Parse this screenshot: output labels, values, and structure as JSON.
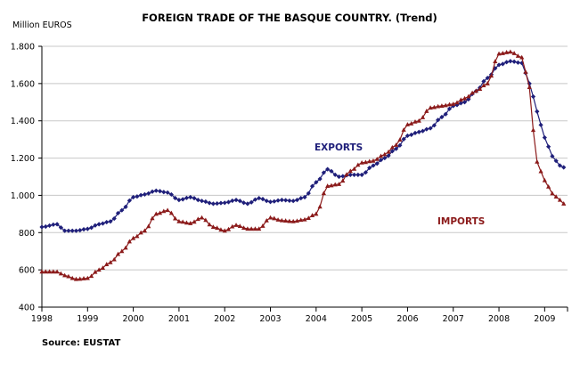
{
  "chart_data": {
    "type": "line",
    "title": "FOREIGN TRADE OF THE BASQUE COUNTRY. (Trend)",
    "ylabel": "Million EUROS",
    "xlabel": "",
    "source": "Source: EUSTAT",
    "xlim": [
      1998,
      2009.5
    ],
    "ylim": [
      400,
      1800
    ],
    "x_ticks": [
      "1998",
      "1999",
      "2000",
      "2001",
      "2002",
      "2003",
      "2004",
      "2005",
      "2006",
      "2007",
      "2008",
      "2009"
    ],
    "y_ticks": [
      "400",
      "600",
      "800",
      "1.000",
      "1.200",
      "1.400",
      "1.600",
      "1.800"
    ],
    "grid": true,
    "series": [
      {
        "name": "EXPORTS",
        "color": "#1F1F7A",
        "marker": "diamond",
        "x": [
          1998.0,
          1998.33,
          1998.5,
          1998.75,
          1999.0,
          1999.25,
          1999.5,
          1999.75,
          2000.0,
          2000.25,
          2000.5,
          2000.75,
          2001.0,
          2001.25,
          2001.5,
          2001.75,
          2002.0,
          2002.25,
          2002.5,
          2002.75,
          2003.0,
          2003.25,
          2003.5,
          2003.75,
          2004.0,
          2004.25,
          2004.5,
          2004.75,
          2005.0,
          2005.25,
          2005.5,
          2005.75,
          2006.0,
          2006.25,
          2006.5,
          2006.75,
          2007.0,
          2007.25,
          2007.5,
          2007.75,
          2008.0,
          2008.25,
          2008.5,
          2008.67,
          2008.75,
          2008.83,
          2009.0,
          2009.17,
          2009.33,
          2009.42
        ],
        "y": [
          830,
          845,
          810,
          810,
          820,
          845,
          860,
          920,
          990,
          1005,
          1025,
          1015,
          975,
          990,
          970,
          955,
          960,
          975,
          955,
          985,
          965,
          975,
          970,
          990,
          1070,
          1140,
          1100,
          1110,
          1110,
          1160,
          1200,
          1250,
          1320,
          1340,
          1360,
          1420,
          1480,
          1500,
          1560,
          1630,
          1700,
          1720,
          1710,
          1600,
          1530,
          1450,
          1310,
          1210,
          1160,
          1150
        ]
      },
      {
        "name": "IMPORTS",
        "color": "#8B1A1A",
        "marker": "triangle",
        "x": [
          1998.0,
          1998.33,
          1998.5,
          1998.75,
          1999.0,
          1999.25,
          1999.5,
          1999.75,
          2000.0,
          2000.25,
          2000.5,
          2000.75,
          2001.0,
          2001.25,
          2001.5,
          2001.75,
          2002.0,
          2002.25,
          2002.5,
          2002.75,
          2003.0,
          2003.25,
          2003.5,
          2003.75,
          2004.0,
          2004.25,
          2004.5,
          2004.75,
          2005.0,
          2005.25,
          2005.5,
          2005.75,
          2006.0,
          2006.25,
          2006.5,
          2006.75,
          2007.0,
          2007.25,
          2007.5,
          2007.75,
          2008.0,
          2008.25,
          2008.5,
          2008.67,
          2008.75,
          2008.83,
          2009.0,
          2009.17,
          2009.33,
          2009.42
        ],
        "y": [
          590,
          590,
          570,
          550,
          555,
          600,
          640,
          700,
          770,
          810,
          900,
          920,
          860,
          850,
          880,
          830,
          810,
          840,
          820,
          820,
          880,
          865,
          860,
          870,
          900,
          1050,
          1060,
          1130,
          1175,
          1185,
          1220,
          1270,
          1380,
          1400,
          1470,
          1480,
          1490,
          1520,
          1560,
          1600,
          1760,
          1770,
          1740,
          1580,
          1350,
          1180,
          1080,
          1010,
          975,
          955
        ]
      }
    ]
  }
}
